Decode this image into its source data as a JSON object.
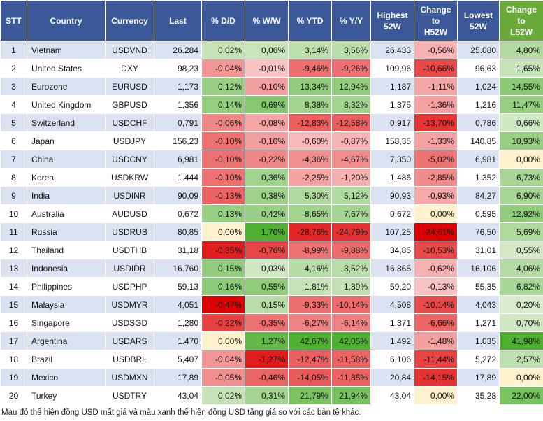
{
  "table": {
    "header": [
      "STT",
      "Country",
      "Currency",
      "Last",
      "% D/D",
      "% W/W",
      "% YTD",
      "% Y/Y",
      "Highest\n52W",
      "Change\nto\nH52W",
      "Lowest\n52W",
      "Change\nto\nL52W"
    ],
    "rows": [
      [
        "1",
        "Vietnam",
        "USDVND",
        "26.284",
        "0,02%",
        "0,06%",
        "3,14%",
        "3,56%",
        "26.433",
        "-0,56%",
        "25.080",
        "4,80%"
      ],
      [
        "2",
        "United States",
        "DXY",
        "98,23",
        "-0,04%",
        "-0,01%",
        "-9,46%",
        "-9,26%",
        "109,96",
        "-10,66%",
        "96,63",
        "1,65%"
      ],
      [
        "3",
        "Eurozone",
        "EURUSD",
        "1,173",
        "0,12%",
        "-0,10%",
        "13,34%",
        "12,94%",
        "1,187",
        "-1,11%",
        "1,024",
        "14,55%"
      ],
      [
        "4",
        "United Kingdom",
        "GBPUSD",
        "1,356",
        "0,14%",
        "0,69%",
        "8,38%",
        "8,32%",
        "1,375",
        "-1,36%",
        "1,216",
        "11,47%"
      ],
      [
        "5",
        "Switzerland",
        "USDCHF",
        "0,791",
        "-0,06%",
        "-0,08%",
        "-12,83%",
        "-12,58%",
        "0,917",
        "-13,70%",
        "0,786",
        "0,66%"
      ],
      [
        "6",
        "Japan",
        "USDJPY",
        "156,23",
        "-0,10%",
        "-0,10%",
        "-0,60%",
        "-0,87%",
        "158,35",
        "-1,33%",
        "140,85",
        "10,93%"
      ],
      [
        "7",
        "China",
        "USDCNY",
        "6,981",
        "-0,10%",
        "-0,22%",
        "-4,36%",
        "-4,67%",
        "7,350",
        "-5,02%",
        "6,981",
        "0,00%"
      ],
      [
        "8",
        "Korea",
        "USDKRW",
        "1.444",
        "-0,10%",
        "0,36%",
        "-2,25%",
        "-1,20%",
        "1.486",
        "-2,85%",
        "1.352",
        "6,73%"
      ],
      [
        "9",
        "India",
        "USDINR",
        "90,09",
        "-0,13%",
        "0,38%",
        "5,30%",
        "5,12%",
        "90,93",
        "-0,93%",
        "84,27",
        "6,90%"
      ],
      [
        "10",
        "Australia",
        "AUDUSD",
        "0,672",
        "0,13%",
        "0,42%",
        "8,65%",
        "7,67%",
        "0,672",
        "0,00%",
        "0,595",
        "12,92%"
      ],
      [
        "11",
        "Russia",
        "USDRUB",
        "80,85",
        "0,00%",
        "1,70%",
        "-28,76%",
        "-24,79%",
        "107,25",
        "-24,61%",
        "76,50",
        "5,69%"
      ],
      [
        "12",
        "Thailand",
        "USDTHB",
        "31,18",
        "-0,35%",
        "-0,76%",
        "-8,99%",
        "-9,88%",
        "34,85",
        "-10,53%",
        "31,01",
        "0,55%"
      ],
      [
        "13",
        "Indonesia",
        "USDIDR",
        "16.760",
        "0,15%",
        "0,03%",
        "4,16%",
        "3,52%",
        "16.865",
        "-0,62%",
        "16.106",
        "4,06%"
      ],
      [
        "14",
        "Philippines",
        "USDPHP",
        "59,13",
        "0,16%",
        "0,55%",
        "1,81%",
        "1,89%",
        "59,20",
        "-0,13%",
        "55,35",
        "6,82%"
      ],
      [
        "15",
        "Malaysia",
        "USDMYR",
        "4,051",
        "-0,47%",
        "0,15%",
        "-9,33%",
        "-10,14%",
        "4,508",
        "-10,14%",
        "4,043",
        "0,20%"
      ],
      [
        "16",
        "Singapore",
        "USDSGD",
        "1,280",
        "-0,22%",
        "-0,35%",
        "-6,27%",
        "-6,14%",
        "1,371",
        "-6,66%",
        "1,271",
        "0,70%"
      ],
      [
        "17",
        "Argentina",
        "USDARS",
        "1.470",
        "0,00%",
        "1,27%",
        "42,67%",
        "42,05%",
        "1.492",
        "-1,48%",
        "1.035",
        "41,98%"
      ],
      [
        "18",
        "Brazil",
        "USDBRL",
        "5,407",
        "-0,04%",
        "-1,27%",
        "-12,47%",
        "-11,58%",
        "6,106",
        "-11,44%",
        "5,272",
        "2,57%"
      ],
      [
        "19",
        "Mexico",
        "USDMXN",
        "17,89",
        "-0,05%",
        "-0,46%",
        "-14,05%",
        "-11,85%",
        "20,84",
        "-14,15%",
        "17,89",
        "0,00%"
      ],
      [
        "20",
        "Turkey",
        "USDTRY",
        "43,04",
        "0,02%",
        "0,31%",
        "21,79%",
        "21,94%",
        "43,04",
        "0,00%",
        "35,28",
        "22,00%"
      ]
    ]
  },
  "footnote": "Màu đỏ thể hiện đồng USD mất giá và màu xanh thể hiện đồng USD tăng giá so với các bản tệ khác."
}
